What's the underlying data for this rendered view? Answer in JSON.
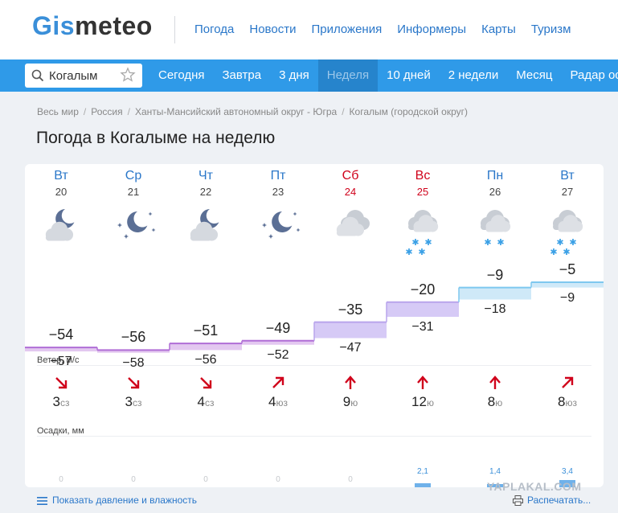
{
  "logo": {
    "part1": "Gis",
    "part2": "meteo"
  },
  "top_nav": [
    "Погода",
    "Новости",
    "Приложения",
    "Информеры",
    "Карты",
    "Туризм"
  ],
  "search": {
    "value": "Когалым"
  },
  "tabs": [
    {
      "label": "Сегодня",
      "active": false
    },
    {
      "label": "Завтра",
      "active": false
    },
    {
      "label": "3 дня",
      "active": false
    },
    {
      "label": "Неделя",
      "active": true
    },
    {
      "label": "10 дней",
      "active": false
    },
    {
      "label": "2 недели",
      "active": false
    },
    {
      "label": "Месяц",
      "active": false
    },
    {
      "label": "Радар оса",
      "active": false
    }
  ],
  "breadcrumbs": [
    "Весь мир",
    "Россия",
    "Ханты-Мансийский автономный округ - Югра",
    "Когалым (городской округ)"
  ],
  "page_title": "Погода в Когалыме на неделю",
  "days": [
    {
      "weekday": "Вт",
      "date": "20",
      "weekend": false,
      "icon": "night-moon-cloud-icon",
      "tmax": "−54",
      "tmin": "−57",
      "wind_speed": "3",
      "wind_dir": "сз",
      "wind_icon": "arrow-down-right-icon",
      "precip": "0",
      "precip_value": 0
    },
    {
      "weekday": "Ср",
      "date": "21",
      "weekend": false,
      "icon": "night-moon-stars-icon",
      "tmax": "−56",
      "tmin": "−58",
      "wind_speed": "3",
      "wind_dir": "сз",
      "wind_icon": "arrow-down-right-icon",
      "precip": "0",
      "precip_value": 0
    },
    {
      "weekday": "Чт",
      "date": "22",
      "weekend": false,
      "icon": "night-moon-cloud-icon",
      "tmax": "−51",
      "tmin": "−56",
      "wind_speed": "4",
      "wind_dir": "сз",
      "wind_icon": "arrow-down-right-icon",
      "precip": "0",
      "precip_value": 0
    },
    {
      "weekday": "Пт",
      "date": "23",
      "weekend": false,
      "icon": "night-moon-stars-icon",
      "tmax": "−49",
      "tmin": "−52",
      "wind_speed": "4",
      "wind_dir": "юз",
      "wind_icon": "arrow-up-right-icon",
      "precip": "0",
      "precip_value": 0
    },
    {
      "weekday": "Сб",
      "date": "24",
      "weekend": true,
      "icon": "cloudy-icon",
      "tmax": "−35",
      "tmin": "−47",
      "wind_speed": "9",
      "wind_dir": "ю",
      "wind_icon": "arrow-up-icon",
      "precip": "0",
      "precip_value": 0
    },
    {
      "weekday": "Вс",
      "date": "25",
      "weekend": true,
      "icon": "cloud-heavy-snow-icon",
      "tmax": "−20",
      "tmin": "−31",
      "wind_speed": "12",
      "wind_dir": "ю",
      "wind_icon": "arrow-up-icon",
      "precip": "2,1",
      "precip_value": 2.1
    },
    {
      "weekday": "Пн",
      "date": "26",
      "weekend": false,
      "icon": "cloud-snow-icon",
      "tmax": "−9",
      "tmin": "−18",
      "wind_speed": "8",
      "wind_dir": "ю",
      "wind_icon": "arrow-up-icon",
      "precip": "1,4",
      "precip_value": 1.4
    },
    {
      "weekday": "Вт",
      "date": "27",
      "weekend": false,
      "icon": "cloud-heavy-snow-icon",
      "tmax": "−5",
      "tmin": "−9",
      "wind_speed": "8",
      "wind_dir": "юз",
      "wind_icon": "arrow-up-right-icon",
      "precip": "3,4",
      "precip_value": 3.4
    }
  ],
  "labels": {
    "wind": "Ветер, м/с",
    "precip": "Осадки, мм"
  },
  "footer": {
    "show_more": "Показать давление и влажность",
    "print": "Распечатать..."
  },
  "watermark": "YAPLAKAL.COM",
  "colors": {
    "brand_blue": "#2f9ae8",
    "link": "#2a77c9",
    "weekend": "#d0021b",
    "wind_arrow": "#d0021b",
    "cold_band": "#b06ed6",
    "warm_band": "#7ec8ef"
  }
}
